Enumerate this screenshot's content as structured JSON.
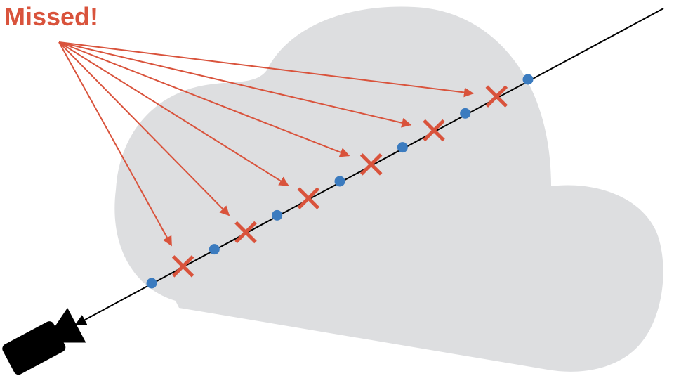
{
  "label": {
    "text": "Missed!"
  },
  "colors": {
    "cloud": "#dddee0",
    "ray": "#000000",
    "sample": "#3b7bbf",
    "missed": "#d9533c",
    "camera": "#000000"
  },
  "ray": {
    "samples": 7,
    "missed_samples": 6
  }
}
